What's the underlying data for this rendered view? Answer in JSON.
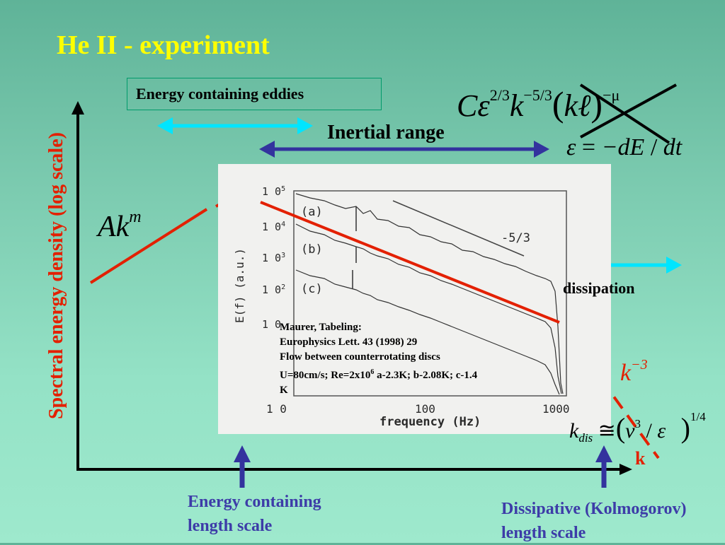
{
  "slide": {
    "title": "He II - experiment",
    "energy_eddies_label": "Energy containing eddies",
    "inertial_range_label": "Inertial range",
    "dissipation_label": "dissipation",
    "y_axis_label": "Spectral energy density (log scale)",
    "x_axis_label": "k",
    "formula_top": "Cε^{2/3}k^{-5/3}(kℓ)^{-μ}",
    "formula_epsilon": "ε = −dE / dt",
    "formula_akm": "Ak^m",
    "formula_k3": "k^{-3}",
    "formula_kdis": "k_dis ≅ (ν^3 / ε)^{1/4}",
    "energy_length_label_line1": "Energy containing",
    "energy_length_label_line2": "length scale",
    "dissipative_label_line1": "Dissipative (Kolmogorov)",
    "dissipative_label_line2": "length scale"
  },
  "inset": {
    "citation_line1": "Maurer, Tabeling:",
    "citation_line2": "Europhysics Lett. 43 (1998) 29",
    "citation_line3": "Flow between counterrotating discs",
    "citation_line4a": "U=80cm/s; Re=2x10",
    "citation_line4_exp": "6",
    "citation_line4b": " a-2.3K; b-2.08K; c-1.4",
    "citation_line5": "K",
    "y_label": "E(f)  (a.u.)",
    "x_label": "frequency  (Hz)",
    "slope_label": "-5/3",
    "curve_labels": [
      "(a)",
      "(b)",
      "(c)"
    ],
    "y_ticks": [
      "1 0",
      "1 0",
      "1 0",
      "1 0",
      "1 0"
    ],
    "y_tick_exps": [
      "5",
      "4",
      "3",
      "2",
      ""
    ],
    "x_ticks": [
      "1 0",
      "100",
      "1000"
    ]
  },
  "colors": {
    "title": "#ffff00",
    "red": "#e32000",
    "cyan": "#00e5ff",
    "navy": "#33339e",
    "label_blue": "#3d3ca8"
  }
}
